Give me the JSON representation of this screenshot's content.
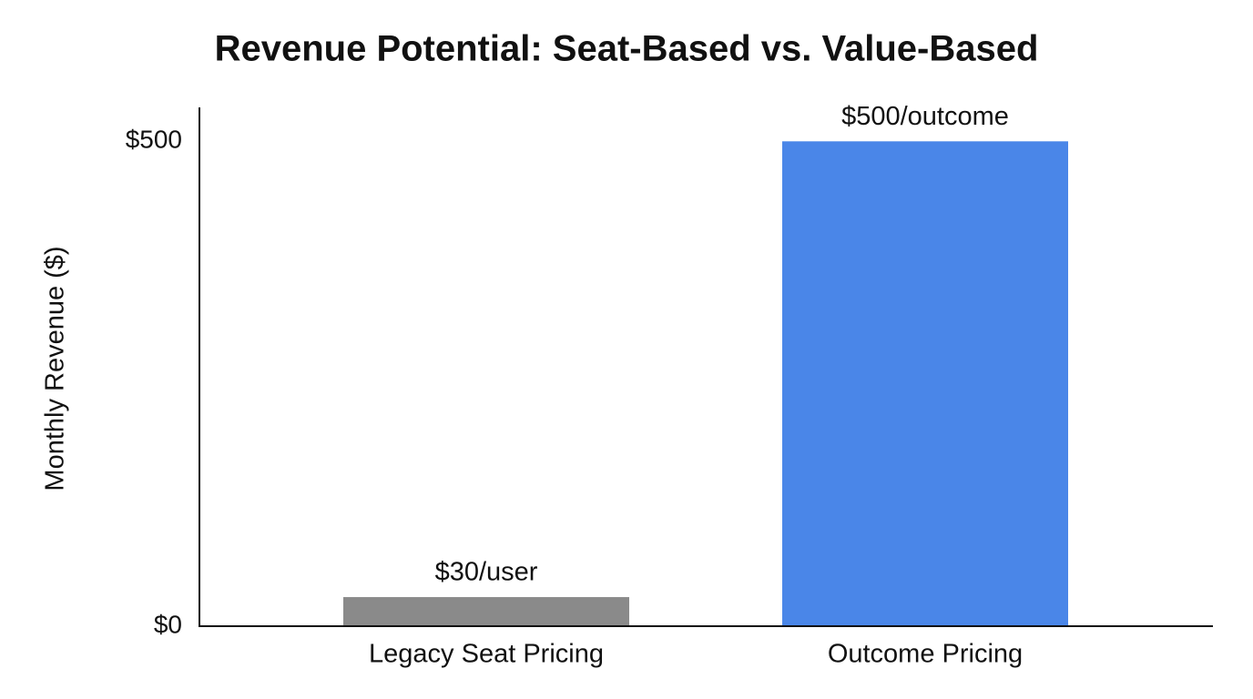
{
  "chart_data": {
    "type": "bar",
    "title": "Revenue Potential: Seat-Based vs. Value-Based",
    "y_label": "Monthly Revenue ($)",
    "categories": [
      "Legacy Seat Pricing",
      "Outcome Pricing"
    ],
    "values": [
      30,
      500
    ],
    "value_labels": [
      "$30/user",
      "$500/outcome"
    ],
    "colors": [
      "#8a8a8a",
      "#4a86e8"
    ],
    "ylim": [
      0,
      535
    ],
    "yticks": [
      {
        "value": 0,
        "label": "$0"
      },
      {
        "value": 500,
        "label": "$500"
      }
    ],
    "grid": false
  }
}
